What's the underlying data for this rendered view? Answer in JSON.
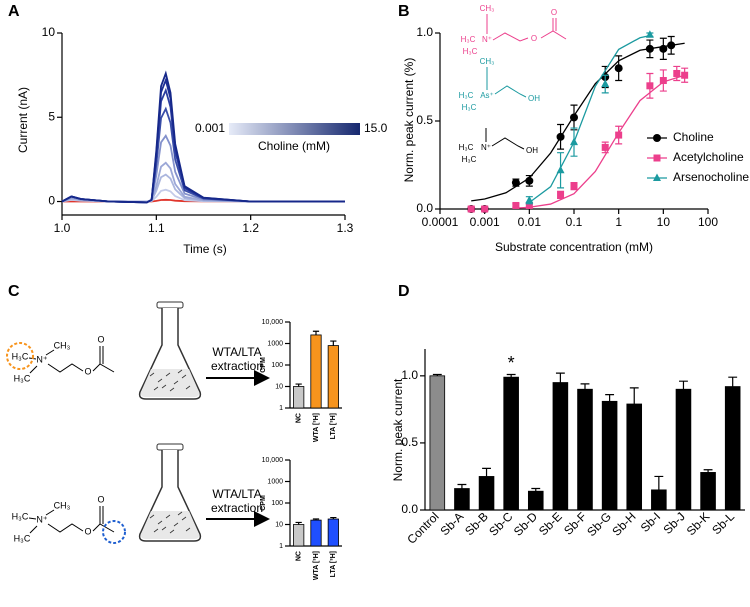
{
  "chart_data": [
    {
      "panel": "A",
      "type": "line",
      "xlabel": "Time (s)",
      "ylabel": "Current (nA)",
      "x": [
        1.0,
        1.01,
        1.02,
        1.05,
        1.09,
        1.095,
        1.1,
        1.105,
        1.11,
        1.115,
        1.12,
        1.13,
        1.15,
        1.2,
        1.25,
        1.3
      ],
      "xlim": [
        1.0,
        1.3
      ],
      "xticks": [
        {
          "value": 1.0,
          "label": "1.0"
        },
        1.1,
        1.2,
        1.3
      ],
      "ylim": [
        -0.8,
        10
      ],
      "yticks": [
        0,
        5,
        10
      ],
      "colorbar": {
        "title": "Choline (mM)",
        "labels": [
          "0.001",
          "15.0"
        ]
      },
      "series": [
        {
          "color": "#e0362c",
          "values": [
            0,
            0,
            0,
            0,
            0,
            0,
            0.04,
            0.09,
            0.1,
            0.09,
            0.05,
            0.02,
            0.01,
            0,
            0,
            0
          ]
        },
        {
          "color": "#c3cbe9",
          "values": [
            0,
            0.1,
            0.05,
            0,
            0,
            0.02,
            0.28,
            0.63,
            0.7,
            0.6,
            0.32,
            0.08,
            0.02,
            0,
            0,
            0
          ]
        },
        {
          "color": "#abb6de",
          "values": [
            0,
            0.15,
            0.08,
            0,
            0,
            0.05,
            0.64,
            1.44,
            1.6,
            1.36,
            0.72,
            0.19,
            0.05,
            0,
            0,
            0
          ]
        },
        {
          "color": "#9ba7d7",
          "values": [
            0,
            0.2,
            0.1,
            0,
            0,
            0.05,
            0.92,
            2.07,
            2.3,
            1.96,
            1.04,
            0.28,
            0.07,
            0,
            0,
            0
          ]
        },
        {
          "color": "#8391cc",
          "values": [
            0,
            0.25,
            0.12,
            0,
            -0.05,
            0.1,
            1.56,
            3.51,
            3.9,
            3.32,
            1.76,
            0.47,
            0.12,
            0,
            0,
            0
          ]
        },
        {
          "color": "#3a4ea8",
          "values": [
            0,
            0.3,
            0.15,
            0,
            -0.05,
            0.1,
            2.2,
            4.95,
            5.5,
            4.68,
            2.48,
            0.66,
            0.17,
            0,
            0,
            0
          ]
        },
        {
          "color": "#2c3ea0",
          "values": [
            0,
            0.3,
            0.15,
            0,
            -0.05,
            0.1,
            2.64,
            5.94,
            6.6,
            5.61,
            2.97,
            0.79,
            0.2,
            0,
            0,
            0
          ]
        },
        {
          "color": "#1e2e96",
          "values": [
            0,
            0.3,
            0.15,
            0,
            -0.05,
            0.1,
            2.88,
            6.48,
            7.2,
            6.12,
            3.24,
            0.86,
            0.22,
            0,
            0,
            0
          ]
        },
        {
          "color": "#16288a",
          "values": [
            0,
            0.3,
            0.15,
            0,
            -0.05,
            0.1,
            3.04,
            6.84,
            7.6,
            6.46,
            3.42,
            0.91,
            0.23,
            0,
            0,
            0
          ]
        }
      ]
    },
    {
      "panel": "B",
      "type": "scatter",
      "xlabel": "Substrate concentration (mM)",
      "ylabel": "Norm. peak current (%)",
      "log_x": true,
      "xlim": [
        0.0001,
        100
      ],
      "xticks": [
        0.0001,
        0.001,
        0.01,
        0.1,
        1,
        10,
        100
      ],
      "ylim": [
        0,
        1
      ],
      "yticks": [
        {
          "value": 0,
          "label": "0.0"
        },
        {
          "value": 0.5,
          "label": "0.5"
        },
        {
          "value": 1,
          "label": "1.0"
        }
      ],
      "legend": "right",
      "series": [
        {
          "name": "Choline",
          "color": "#000000",
          "marker": "circle",
          "x": [
            0.0005,
            0.001,
            0.005,
            0.01,
            0.05,
            0.1,
            0.5,
            1,
            5,
            10,
            15
          ],
          "values": [
            0,
            0,
            0.15,
            0.16,
            0.41,
            0.52,
            0.75,
            0.8,
            0.91,
            0.91,
            0.93
          ],
          "errors": [
            0.01,
            0.01,
            0.02,
            0.03,
            0.07,
            0.07,
            0.06,
            0.07,
            0.05,
            0.06,
            0.05
          ],
          "fit_x": [
            0.0005,
            0.001,
            0.003,
            0.01,
            0.03,
            0.1,
            0.3,
            1,
            3,
            10,
            30
          ],
          "fit_values": [
            0.046,
            0.057,
            0.092,
            0.176,
            0.318,
            0.53,
            0.712,
            0.842,
            0.902,
            0.923,
            0.942
          ]
        },
        {
          "name": "Acetylcholine",
          "color": "#ec3f8c",
          "marker": "square",
          "x": [
            0.0005,
            0.001,
            0.005,
            0.01,
            0.05,
            0.1,
            0.5,
            1,
            5,
            10,
            20,
            30
          ],
          "values": [
            0,
            0,
            0.02,
            0.02,
            0.08,
            0.13,
            0.35,
            0.42,
            0.7,
            0.73,
            0.77,
            0.76
          ],
          "errors": [
            0.01,
            0.01,
            0.01,
            0.01,
            0.02,
            0.02,
            0.03,
            0.05,
            0.07,
            0.06,
            0.04,
            0.04
          ],
          "fit_x": [
            0.005,
            0.01,
            0.03,
            0.1,
            0.3,
            1,
            3,
            10,
            30
          ],
          "fit_values": [
            0.005,
            0.01,
            0.028,
            0.087,
            0.213,
            0.433,
            0.616,
            0.722,
            0.76
          ]
        },
        {
          "name": "Arsenocholine",
          "color": "#1b9aa0",
          "marker": "triangle",
          "x": [
            0.01,
            0.05,
            0.1,
            0.5,
            5
          ],
          "values": [
            0.05,
            0.22,
            0.38,
            0.71,
            0.99
          ],
          "errors": [
            0.02,
            0.1,
            0.08,
            0.05,
            0.01
          ],
          "fit_x": [
            0.01,
            0.03,
            0.1,
            0.3,
            1,
            3,
            5
          ],
          "fit_values": [
            0.037,
            0.127,
            0.38,
            0.697,
            0.907,
            0.973,
            0.985
          ]
        }
      ],
      "structures": [
        {
          "color": "#ec3f8c",
          "atoms": [
            "CH₃",
            "H₃C",
            "N⁺",
            "H₃C",
            "O",
            "O"
          ]
        },
        {
          "color": "#1b9aa0",
          "atoms": [
            "CH₃",
            "H₃C",
            "As⁺",
            "H₃C",
            "OH"
          ]
        },
        {
          "color": "#000000",
          "atoms": [
            "H₃C",
            "N⁺",
            "H₃C",
            "OH"
          ]
        }
      ]
    },
    {
      "panel": "C",
      "type": "bar",
      "ylabel": "CPM",
      "log_y": true,
      "ylim": [
        1,
        10000
      ],
      "yticks": [
        1,
        10,
        100,
        1000,
        {
          "value": 10000,
          "label": "10,000"
        }
      ],
      "categories": [
        "NC",
        "WTA [³H]",
        "LTA [³H]"
      ],
      "values": [
        10,
        2500,
        800
      ],
      "errors": [
        3,
        1200,
        500
      ],
      "colors": [
        "#c8c8c8",
        "#f7941d",
        "#f7941d"
      ],
      "label_rotation": -90,
      "annotation": [
        "WTA/LTA",
        "extraction"
      ],
      "structure": {
        "atoms": [
          "H₃C",
          "CH₃",
          "N⁺",
          "H₃C",
          "O",
          "O"
        ]
      }
    },
    {
      "type": "bar",
      "ylabel": "CPM",
      "log_y": true,
      "ylim": [
        1,
        10000
      ],
      "yticks": [
        1,
        10,
        100,
        1000,
        {
          "value": 10000,
          "label": "10,000"
        }
      ],
      "categories": [
        "NC",
        "WTA [³H]",
        "LTA [³H]"
      ],
      "values": [
        10,
        16,
        18
      ],
      "errors": [
        2.5,
        2,
        3
      ],
      "colors": [
        "#c8c8c8",
        "#1f4fff",
        "#1f4fff"
      ],
      "label_rotation": -90,
      "annotation": [
        "WTA/LTA",
        "extraction"
      ],
      "structure": {
        "atoms": [
          "H₃C",
          "CH₃",
          "N⁺",
          "H₃C",
          "O",
          "O"
        ]
      }
    },
    {
      "panel": "D",
      "type": "bar",
      "ylabel": "Norm. peak current",
      "ylim": [
        0,
        1.2
      ],
      "yticks": [
        {
          "value": 0,
          "label": "0.0"
        },
        {
          "value": 0.5,
          "label": "0.5"
        },
        {
          "value": 1,
          "label": "1.0"
        }
      ],
      "categories": [
        "Control",
        "Sb-A",
        "Sb-B",
        "Sb-C",
        "Sb-D",
        "Sb-E",
        "Sb-F",
        "Sb-G",
        "Sb-H",
        "Sb-I",
        "Sb-J",
        "Sb-K",
        "Sb-L"
      ],
      "values": [
        1.0,
        0.16,
        0.25,
        0.99,
        0.14,
        0.95,
        0.9,
        0.81,
        0.79,
        0.15,
        0.9,
        0.28,
        0.92
      ],
      "errors": [
        0.01,
        0.03,
        0.06,
        0.02,
        0.02,
        0.07,
        0.04,
        0.05,
        0.12,
        0.1,
        0.06,
        0.02,
        0.07
      ],
      "colors": [
        "#8c8c8c",
        "#000000",
        "#000000",
        "#000000",
        "#000000",
        "#000000",
        "#000000",
        "#000000",
        "#000000",
        "#000000",
        "#000000",
        "#000000",
        "#000000"
      ],
      "label_rotation": -45,
      "annotations": [
        {
          "text": "*",
          "category": "Sb-C"
        }
      ]
    }
  ]
}
